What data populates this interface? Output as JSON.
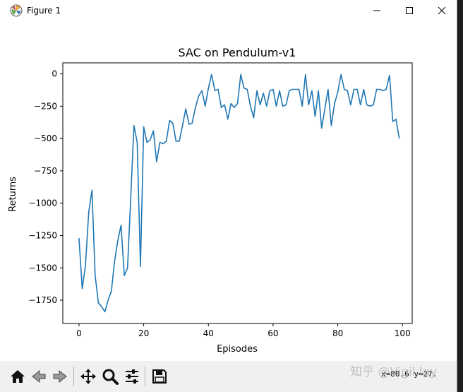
{
  "window": {
    "title": "Figure 1",
    "controls": [
      "minimize",
      "maximize",
      "close"
    ]
  },
  "toolbar": {
    "buttons": [
      "home-icon",
      "back-icon",
      "forward-icon",
      "pan-icon",
      "zoom-icon",
      "configure-icon",
      "save-icon"
    ],
    "coordinate_readout": "x=80.6 y=27."
  },
  "watermark": "知乎 @Vigil.lay",
  "chart_data": {
    "type": "line",
    "title": "SAC on Pendulum-v1",
    "xlabel": "Episodes",
    "ylabel": "Returns",
    "xlim": [
      -5,
      103
    ],
    "ylim": [
      -1930,
      85
    ],
    "xticks": [
      0,
      20,
      40,
      60,
      80,
      100
    ],
    "xtick_labels": [
      "0",
      "20",
      "40",
      "60",
      "80",
      "100"
    ],
    "yticks": [
      0,
      -250,
      -500,
      -750,
      -1000,
      -1250,
      -1500,
      -1750
    ],
    "ytick_labels": [
      "0",
      "−250",
      "−500",
      "−750",
      "−1000",
      "−1250",
      "−1500",
      "−1750"
    ],
    "grid": false,
    "line_color": "#1f77b4",
    "series": [
      {
        "x": [
          0,
          1,
          2,
          3,
          4,
          5,
          6,
          7,
          8,
          9,
          10,
          11,
          12,
          13,
          14,
          15,
          16,
          17,
          18,
          19,
          20,
          21,
          22,
          23,
          24,
          25,
          26,
          27,
          28,
          29,
          30,
          31,
          32,
          33,
          34,
          35,
          36,
          37,
          38,
          39,
          40,
          41,
          42,
          43,
          44,
          45,
          46,
          47,
          48,
          49,
          50,
          51,
          52,
          53,
          54,
          55,
          56,
          57,
          58,
          59,
          60,
          61,
          62,
          63,
          64,
          65,
          66,
          67,
          68,
          69,
          70,
          71,
          72,
          73,
          74,
          75,
          76,
          77,
          78,
          79,
          80,
          81,
          82,
          83,
          84,
          85,
          86,
          87,
          88,
          89,
          90,
          91,
          92,
          93,
          94,
          95,
          96,
          97,
          98,
          99
        ],
        "values": [
          -1270,
          -1660,
          -1480,
          -1070,
          -900,
          -1560,
          -1770,
          -1800,
          -1840,
          -1750,
          -1680,
          -1450,
          -1290,
          -1170,
          -1560,
          -1500,
          -950,
          -400,
          -530,
          -1490,
          -410,
          -530,
          -510,
          -440,
          -680,
          -530,
          -540,
          -520,
          -360,
          -380,
          -520,
          -520,
          -400,
          -270,
          -390,
          -380,
          -260,
          -170,
          -130,
          -250,
          -110,
          -5,
          -130,
          -120,
          -260,
          -240,
          -350,
          -230,
          -260,
          -230,
          -5,
          -110,
          -120,
          -250,
          -340,
          -130,
          -240,
          -150,
          -250,
          -130,
          -120,
          -250,
          -130,
          -250,
          -240,
          -130,
          -120,
          -120,
          -120,
          -250,
          -5,
          -240,
          -130,
          -330,
          -130,
          -420,
          -270,
          -120,
          -400,
          -230,
          -140,
          -5,
          -120,
          -130,
          -240,
          -120,
          -120,
          -240,
          -120,
          -240,
          -250,
          -240,
          -120,
          -120,
          -130,
          -120,
          -10,
          -370,
          -350,
          -500
        ]
      }
    ]
  }
}
